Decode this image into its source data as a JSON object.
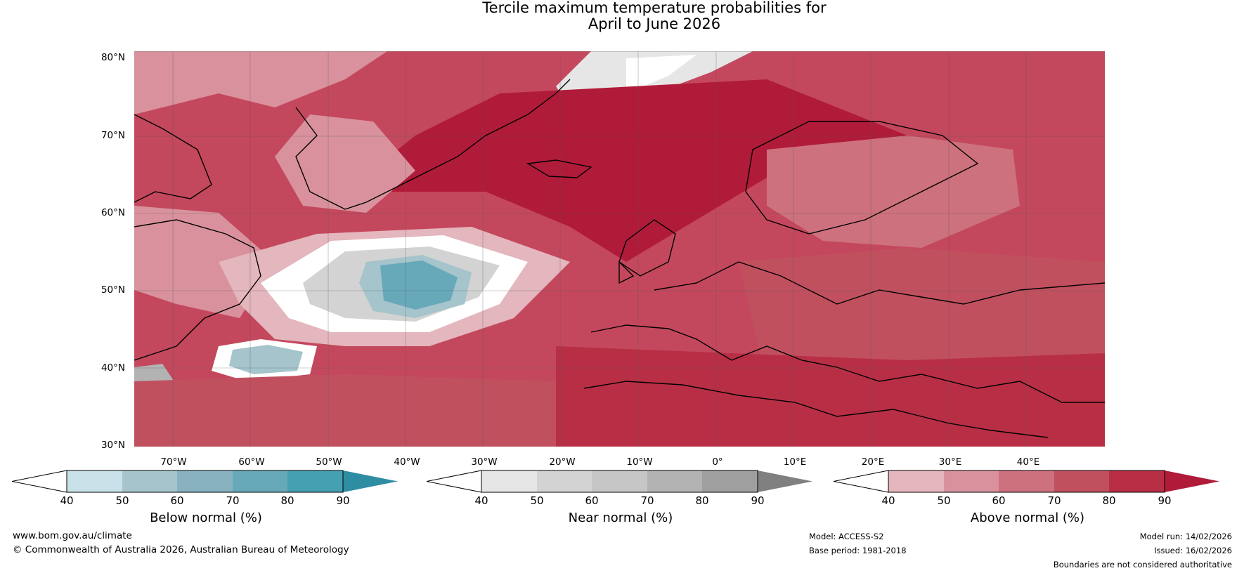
{
  "title": {
    "line1": "Tercile maximum temperature probabilities for",
    "line2": "April to June 2026"
  },
  "map": {
    "lat_labels": [
      "80°N",
      "70°N",
      "60°N",
      "50°N",
      "40°N",
      "30°N"
    ],
    "lon_labels": [
      "70°W",
      "60°W",
      "50°W",
      "40°W",
      "30°W",
      "20°W",
      "10°W",
      "0°",
      "10°E",
      "20°E",
      "30°E",
      "40°E"
    ],
    "region": "North Atlantic and Europe"
  },
  "colorbars": {
    "below": {
      "title": "Below normal (%)",
      "ticks": [
        "40",
        "50",
        "60",
        "70",
        "80",
        "90"
      ],
      "colors": [
        "#ffffff",
        "#c9e1e8",
        "#a5c4cc",
        "#88b2c0",
        "#67a9b9",
        "#45a0b2",
        "#2e8da2"
      ]
    },
    "near": {
      "title": "Near normal (%)",
      "ticks": [
        "40",
        "50",
        "60",
        "70",
        "80",
        "90"
      ],
      "colors": [
        "#ffffff",
        "#e6e6e6",
        "#d3d3d3",
        "#c6c6c6",
        "#b3b3b3",
        "#9f9f9f",
        "#808080"
      ]
    },
    "above": {
      "title": "Above normal (%)",
      "ticks": [
        "40",
        "50",
        "60",
        "70",
        "80",
        "90"
      ],
      "colors": [
        "#ffffff",
        "#e4b6bd",
        "#d9929d",
        "#cd717e",
        "#c1505f",
        "#b82f45",
        "#b11b3a"
      ]
    }
  },
  "footer": {
    "website": "www.bom.gov.au/climate",
    "copyright": "© Commonwealth of Australia 2026, Australian Bureau of Meteorology",
    "model": "Model: ACCESS-S2",
    "base_period": "Base period: 1981-2018",
    "model_run": "Model run: 14/02/2026",
    "issued": "Issued: 16/02/2026",
    "disclaimer": "Boundaries are not considered authoritative"
  }
}
